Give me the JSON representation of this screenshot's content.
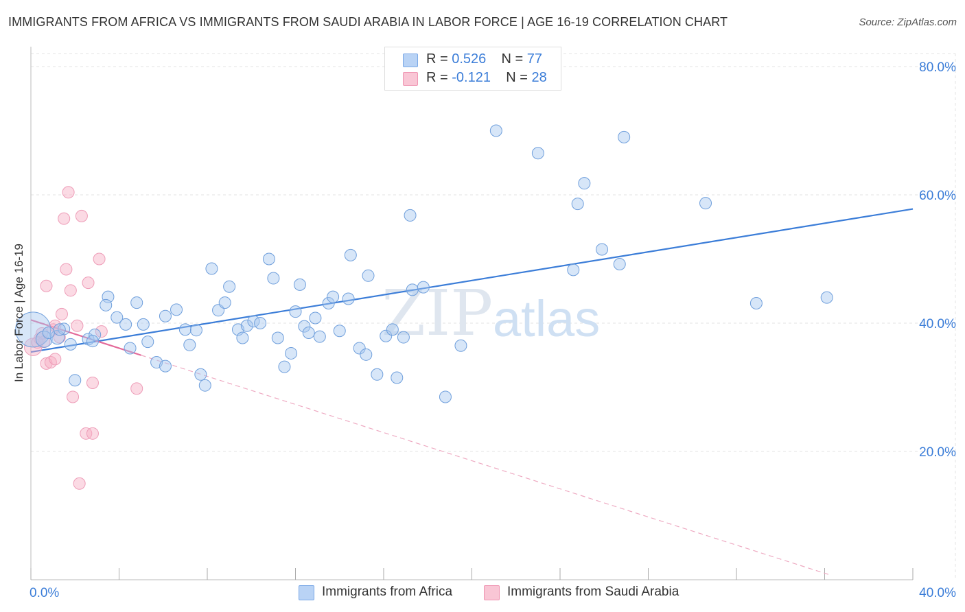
{
  "title": "IMMIGRANTS FROM AFRICA VS IMMIGRANTS FROM SAUDI ARABIA IN LABOR FORCE | AGE 16-19 CORRELATION CHART",
  "source": "Source: ZipAtlas.com",
  "watermark": {
    "zip": "ZIP",
    "atlas": "atlas"
  },
  "legend": {
    "series1": {
      "r_label": "R =",
      "r_value": "0.526",
      "n_label": "N =",
      "n_value": "77"
    },
    "series2": {
      "r_label": "R =",
      "r_value": "-0.121",
      "n_label": "N =",
      "n_value": "28"
    }
  },
  "chart_data": {
    "type": "scatter",
    "ylabel": "In Labor Force | Age 16-19",
    "xlim": [
      0,
      40
    ],
    "ylim": [
      0,
      80
    ],
    "x_tick_labels": [
      "0.0%",
      "40.0%"
    ],
    "y_ticks": [
      20,
      40,
      60,
      80
    ],
    "y_tick_labels": [
      "20.0%",
      "40.0%",
      "60.0%",
      "80.0%"
    ],
    "colors": {
      "africa": "#3b7dd8",
      "saudi": "#e46b9a",
      "axis_text": "#3b7dd8"
    },
    "series": [
      {
        "name": "Immigrants from Africa",
        "trend": {
          "x": [
            0,
            40
          ],
          "y": [
            35.5,
            57.8
          ]
        },
        "points": [
          [
            0.1,
            39.0,
            3
          ],
          [
            0.6,
            37.5,
            1.4
          ],
          [
            1.2,
            37.8,
            1.2
          ],
          [
            1.5,
            39.1,
            1
          ],
          [
            1.8,
            36.7,
            1
          ],
          [
            2.6,
            37.5,
            1
          ],
          [
            2.9,
            38.2,
            1
          ],
          [
            2.0,
            31.1,
            1
          ],
          [
            3.5,
            44.1,
            1
          ],
          [
            3.4,
            42.8,
            1
          ],
          [
            3.9,
            40.9,
            1
          ],
          [
            4.3,
            39.8,
            1
          ],
          [
            4.8,
            43.2,
            1
          ],
          [
            4.5,
            36.1,
            1
          ],
          [
            5.1,
            39.8,
            1
          ],
          [
            5.3,
            37.1,
            1
          ],
          [
            5.7,
            33.9,
            1
          ],
          [
            6.1,
            41.1,
            1
          ],
          [
            6.1,
            33.3,
            1
          ],
          [
            6.6,
            42.1,
            1
          ],
          [
            7.0,
            39.0,
            1
          ],
          [
            7.2,
            36.6,
            1
          ],
          [
            7.5,
            38.9,
            1
          ],
          [
            7.7,
            32.0,
            1
          ],
          [
            7.9,
            30.3,
            1
          ],
          [
            8.2,
            48.5,
            1
          ],
          [
            8.5,
            42.0,
            1
          ],
          [
            8.8,
            43.2,
            1
          ],
          [
            9.0,
            45.7,
            1
          ],
          [
            9.4,
            39.0,
            1
          ],
          [
            9.6,
            37.7,
            1
          ],
          [
            9.8,
            39.6,
            1
          ],
          [
            10.1,
            40.3,
            1
          ],
          [
            10.4,
            40.0,
            1
          ],
          [
            10.8,
            50.0,
            1
          ],
          [
            11.0,
            47.0,
            1
          ],
          [
            11.2,
            37.7,
            1
          ],
          [
            11.5,
            33.2,
            1
          ],
          [
            11.8,
            35.3,
            1
          ],
          [
            12.0,
            41.8,
            1
          ],
          [
            12.2,
            46.0,
            1
          ],
          [
            12.4,
            39.5,
            1
          ],
          [
            12.6,
            38.5,
            1
          ],
          [
            12.9,
            40.8,
            1
          ],
          [
            13.1,
            37.9,
            1
          ],
          [
            13.5,
            43.1,
            1
          ],
          [
            13.7,
            44.1,
            1
          ],
          [
            14.0,
            38.8,
            1
          ],
          [
            14.4,
            43.8,
            1
          ],
          [
            14.5,
            50.6,
            1
          ],
          [
            14.9,
            36.1,
            1
          ],
          [
            15.2,
            35.1,
            1
          ],
          [
            15.3,
            47.4,
            1
          ],
          [
            15.7,
            32.0,
            1
          ],
          [
            16.1,
            38.0,
            1
          ],
          [
            16.4,
            39.0,
            1
          ],
          [
            16.6,
            31.5,
            1
          ],
          [
            16.9,
            37.8,
            1
          ],
          [
            17.2,
            56.8,
            1
          ],
          [
            17.3,
            45.2,
            1
          ],
          [
            17.8,
            45.6,
            1
          ],
          [
            18.8,
            28.5,
            1
          ],
          [
            19.5,
            36.5,
            1
          ],
          [
            21.1,
            70.0,
            1
          ],
          [
            23.0,
            66.5,
            1
          ],
          [
            24.6,
            48.3,
            1
          ],
          [
            24.8,
            58.6,
            1
          ],
          [
            25.1,
            61.8,
            1
          ],
          [
            25.9,
            51.5,
            1
          ],
          [
            26.7,
            49.2,
            1
          ],
          [
            26.9,
            69.0,
            1
          ],
          [
            30.6,
            58.7,
            1
          ],
          [
            32.9,
            43.1,
            1
          ],
          [
            36.1,
            44.0,
            1
          ],
          [
            2.8,
            37.2,
            1
          ],
          [
            1.3,
            39.0,
            1
          ],
          [
            0.8,
            38.5,
            1
          ]
        ]
      },
      {
        "name": "Immigrants from Saudi Arabia",
        "trend": {
          "x": [
            0,
            5.0
          ],
          "y": [
            40.5,
            35.0
          ]
        },
        "trend_dashed": {
          "x": [
            5.0,
            36.2
          ],
          "y": [
            35.0,
            0.8
          ]
        },
        "points": [
          [
            0.1,
            36.3,
            1.5
          ],
          [
            0.4,
            37.6,
            1
          ],
          [
            0.6,
            37.1,
            1
          ],
          [
            0.5,
            38.4,
            1
          ],
          [
            0.7,
            45.8,
            1
          ],
          [
            0.7,
            33.7,
            1
          ],
          [
            0.9,
            33.9,
            1
          ],
          [
            1.0,
            39.0,
            1
          ],
          [
            1.1,
            39.6,
            1
          ],
          [
            1.1,
            34.4,
            1
          ],
          [
            1.4,
            41.4,
            1
          ],
          [
            1.5,
            56.3,
            1
          ],
          [
            1.6,
            48.4,
            1
          ],
          [
            1.7,
            60.4,
            1
          ],
          [
            1.8,
            45.1,
            1
          ],
          [
            1.9,
            28.5,
            1
          ],
          [
            2.1,
            39.6,
            1
          ],
          [
            2.2,
            15.0,
            1
          ],
          [
            2.3,
            56.7,
            1
          ],
          [
            2.5,
            22.8,
            1
          ],
          [
            2.6,
            46.3,
            1
          ],
          [
            2.8,
            22.8,
            1
          ],
          [
            2.8,
            30.7,
            1
          ],
          [
            3.1,
            50.0,
            1
          ],
          [
            3.2,
            38.7,
            1
          ],
          [
            4.8,
            29.8,
            1
          ],
          [
            0.3,
            37.0,
            1
          ],
          [
            1.3,
            37.8,
            1
          ]
        ]
      }
    ]
  },
  "bottom_legend": [
    "Immigrants from Africa",
    "Immigrants from Saudi Arabia"
  ]
}
